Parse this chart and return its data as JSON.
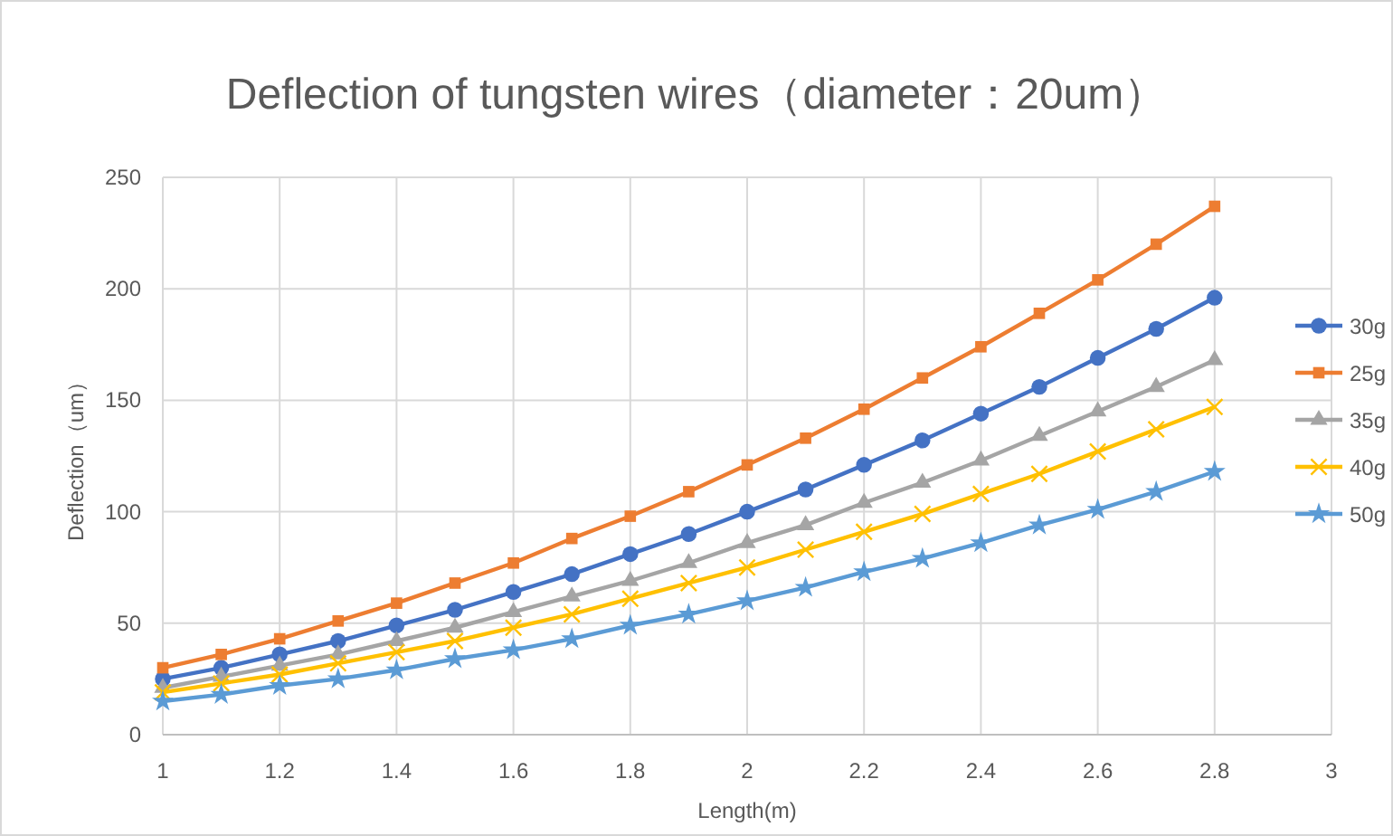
{
  "chart_data": {
    "type": "line",
    "title": "Deflection of tungsten wires（diameter：20um）",
    "xlabel": "Length(m)",
    "ylabel": "Deflection（um）",
    "x": [
      1,
      1.1,
      1.2,
      1.3,
      1.4,
      1.5,
      1.6,
      1.7,
      1.8,
      1.9,
      2,
      2.1,
      2.2,
      2.3,
      2.4,
      2.5,
      2.6,
      2.7,
      2.8
    ],
    "xlim": [
      1,
      3
    ],
    "xticks": [
      1,
      1.2,
      1.4,
      1.6,
      1.8,
      2,
      2.2,
      2.4,
      2.6,
      2.8,
      3
    ],
    "ylim": [
      0,
      250
    ],
    "yticks": [
      0,
      50,
      100,
      150,
      200,
      250
    ],
    "grid": true,
    "legend": "right",
    "series": [
      {
        "name": "30g",
        "color": "#4472c4",
        "marker": "circle",
        "values": [
          25,
          30,
          36,
          42,
          49,
          56,
          64,
          72,
          81,
          90,
          100,
          110,
          121,
          132,
          144,
          156,
          169,
          182,
          196
        ]
      },
      {
        "name": "25g",
        "color": "#ed7d31",
        "marker": "square",
        "values": [
          30,
          36,
          43,
          51,
          59,
          68,
          77,
          88,
          98,
          109,
          121,
          133,
          146,
          160,
          174,
          189,
          204,
          220,
          237
        ]
      },
      {
        "name": "35g",
        "color": "#a5a5a5",
        "marker": "triangle",
        "values": [
          21,
          26,
          31,
          36,
          42,
          48,
          55,
          62,
          69,
          77,
          86,
          94,
          104,
          113,
          123,
          134,
          145,
          156,
          168
        ]
      },
      {
        "name": "40g",
        "color": "#ffc000",
        "marker": "cross",
        "values": [
          19,
          23,
          27,
          32,
          37,
          42,
          48,
          54,
          61,
          68,
          75,
          83,
          91,
          99,
          108,
          117,
          127,
          137,
          147
        ]
      },
      {
        "name": "50g",
        "color": "#5b9bd5",
        "marker": "star",
        "values": [
          15,
          18,
          22,
          25,
          29,
          34,
          38,
          43,
          49,
          54,
          60,
          66,
          73,
          79,
          86,
          94,
          101,
          109,
          118
        ]
      }
    ]
  }
}
